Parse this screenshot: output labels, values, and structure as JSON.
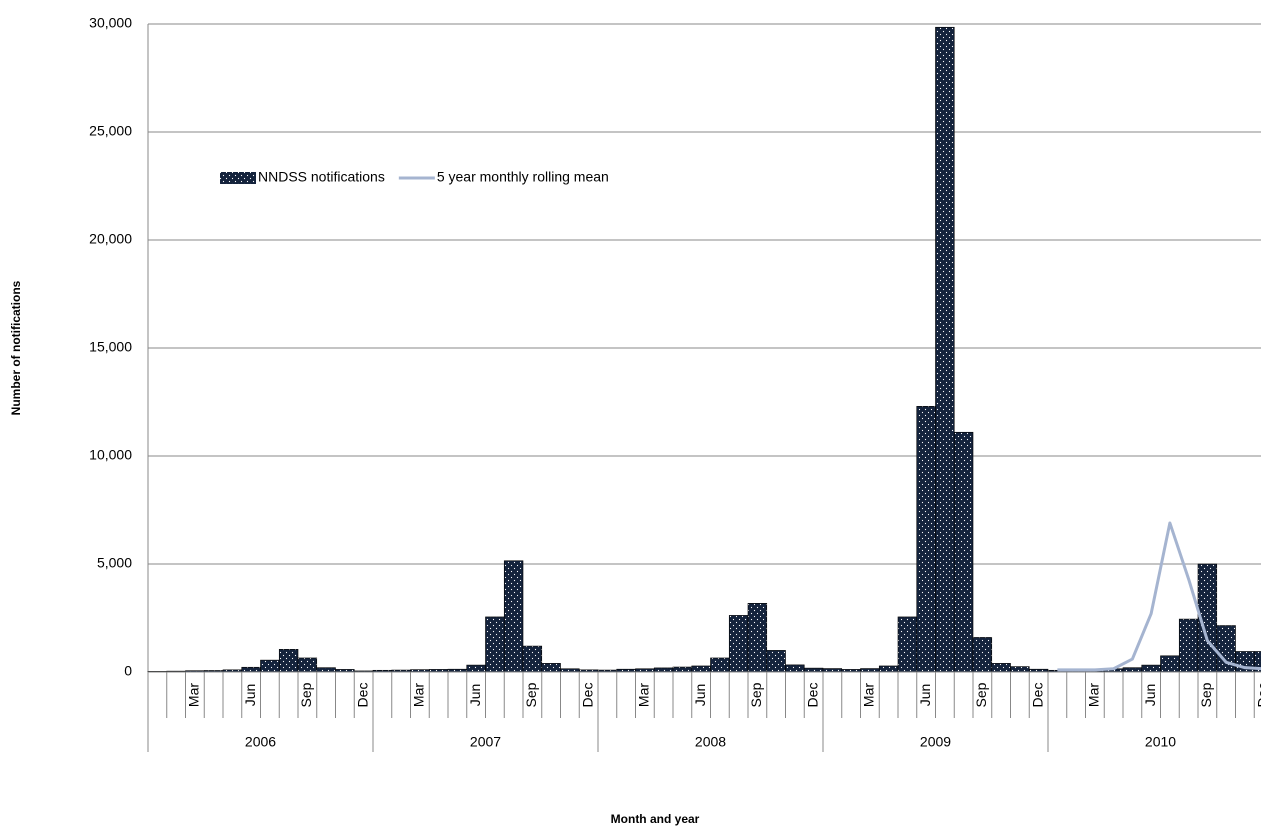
{
  "chart_data": {
    "type": "bar",
    "y_label": "Number of notifications",
    "x_label": "Month and year",
    "categories": [
      null,
      null,
      "Mar",
      null,
      null,
      "Jun",
      null,
      null,
      "Sep",
      null,
      null,
      "Dec",
      null,
      null,
      "Mar",
      null,
      null,
      "Jun",
      null,
      null,
      "Sep",
      null,
      null,
      "Dec",
      null,
      null,
      "Mar",
      null,
      null,
      "Jun",
      null,
      null,
      "Sep",
      null,
      null,
      "Dec",
      null,
      null,
      "Mar",
      null,
      null,
      "Jun",
      null,
      null,
      "Sep",
      null,
      null,
      "Dec",
      null,
      null,
      "Mar",
      null,
      null,
      "Jun",
      null,
      null,
      "Sep",
      null,
      null,
      "Dec"
    ],
    "years": [
      "2006",
      "2007",
      "2008",
      "2009",
      "2010"
    ],
    "series": [
      {
        "name": "NNDSS notifications",
        "type": "bar",
        "color": "#14233c",
        "values": [
          30,
          40,
          60,
          70,
          100,
          220,
          550,
          1050,
          650,
          200,
          120,
          50,
          80,
          90,
          110,
          120,
          130,
          320,
          2550,
          5150,
          1200,
          400,
          150,
          100,
          90,
          130,
          150,
          190,
          230,
          280,
          650,
          2620,
          3180,
          1000,
          330,
          180,
          160,
          120,
          160,
          280,
          2550,
          12300,
          29850,
          11100,
          1600,
          400,
          250,
          130,
          80,
          90,
          100,
          150,
          200,
          320,
          750,
          2450,
          5000,
          2150,
          950,
          950
        ]
      },
      {
        "name": "5 year monthly rolling mean",
        "type": "line",
        "color": "#a5b4d0",
        "values": [
          null,
          null,
          null,
          null,
          null,
          null,
          null,
          null,
          null,
          null,
          null,
          null,
          null,
          null,
          null,
          null,
          null,
          null,
          null,
          null,
          null,
          null,
          null,
          null,
          null,
          null,
          null,
          null,
          null,
          null,
          null,
          null,
          null,
          null,
          null,
          null,
          null,
          null,
          null,
          null,
          null,
          null,
          null,
          null,
          null,
          null,
          null,
          null,
          100,
          100,
          100,
          150,
          600,
          2700,
          6900,
          4300,
          1450,
          450,
          200,
          150
        ]
      }
    ],
    "ylim": [
      0,
      30000
    ],
    "yticks": [
      0,
      {
        "value": 5000,
        "label": "5,000"
      },
      {
        "value": 10000,
        "label": "10,000"
      },
      {
        "value": 15000,
        "label": "15,000"
      },
      {
        "value": 20000,
        "label": "20,000"
      },
      {
        "value": 25000,
        "label": "25,000"
      },
      {
        "value": 30000,
        "label": "30,000"
      }
    ],
    "grid": true
  }
}
